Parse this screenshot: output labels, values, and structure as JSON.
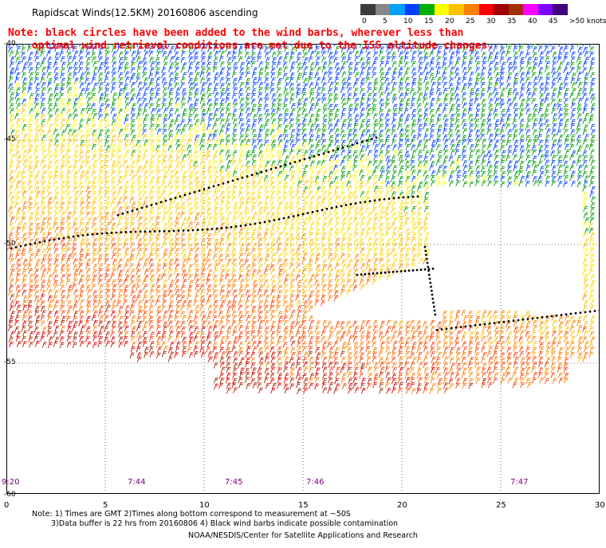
{
  "header": {
    "title": "Rapidscat Winds(12.5KM) 20160806 ascending"
  },
  "note": {
    "line1": "Note: black circles have been added to the wind barbs, wherever less than",
    "line2": "optimal wind retrieval conditions are met due to the ISS altitude changes."
  },
  "colorbar": {
    "units": "knots",
    "labels": [
      "0",
      "5",
      "10",
      "15",
      "20",
      "25",
      "30",
      "35",
      "40",
      "45",
      ">50 knots"
    ],
    "colors": [
      "#3c3c3c",
      "#888888",
      "#00a0ff",
      "#0040ff",
      "#00b000",
      "#ffff00",
      "#ffc000",
      "#ff8000",
      "#ff0000",
      "#a00000",
      "#a03000",
      "#ff00ff",
      "#8000ff",
      "#400080"
    ]
  },
  "axes": {
    "lat_labels": [
      "-40",
      "-45",
      "-50",
      "-55",
      "-60"
    ],
    "lon_labels": [
      "0",
      "5",
      "10",
      "15",
      "20",
      "25",
      "30"
    ]
  },
  "pass_times": [
    "9:20",
    "7:44",
    "7:45",
    "7:46",
    "7:47"
  ],
  "footer": {
    "line1": "Note: 1) Times are GMT 2)Times along bottom correspond to measurement at ~50S",
    "line2": "3)Data buffer is 22 hrs from 20160806 4) Black wind barbs indicate possible contamination",
    "credit": "NOAA/NESDIS/Center for Satellite Applications and Research"
  }
}
